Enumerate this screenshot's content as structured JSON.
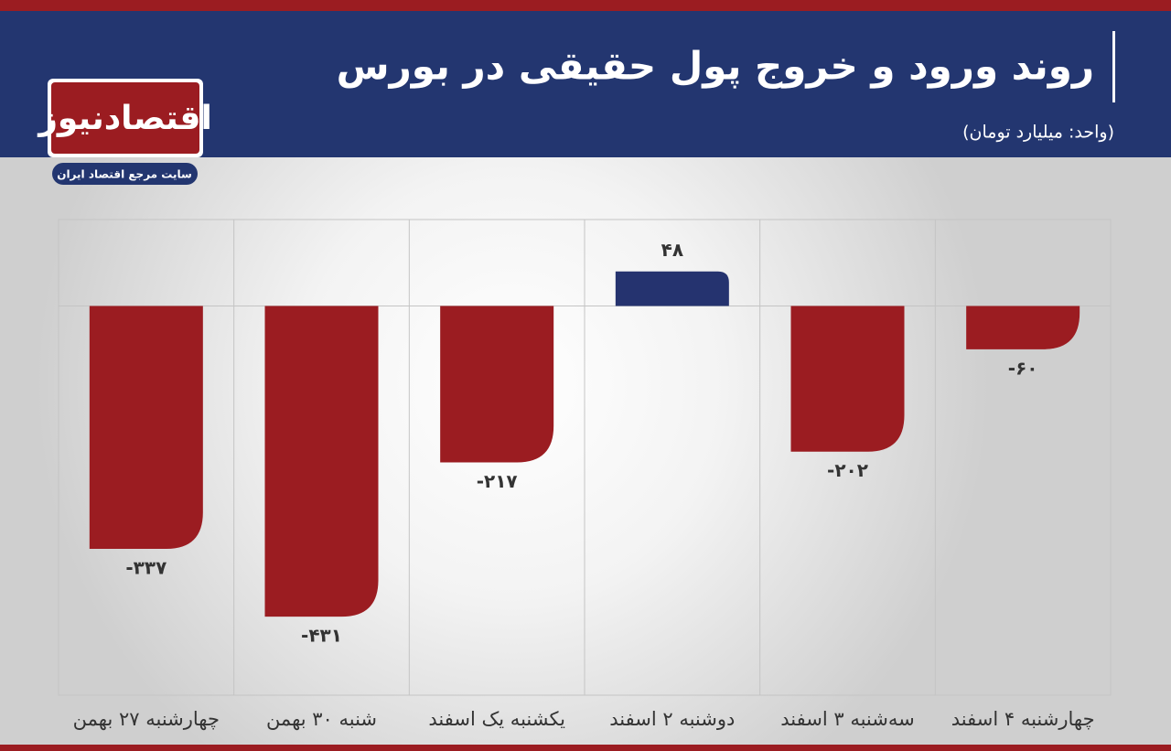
{
  "chart_data": {
    "type": "bar",
    "title": "روند ورود و خروج پول حقیقی در بورس",
    "subtitle": "(واحد: میلیارد تومان)",
    "categories": [
      "چهارشنبه ۲۷ بهمن",
      "شنبه ۳۰ بهمن",
      "یکشنبه یک اسفند",
      "دوشنبه ۲ اسفند",
      "سه‌شنبه ۳ اسفند",
      "چهارشنبه ۴ اسفند"
    ],
    "values": [
      -337,
      -431,
      -217,
      48,
      -202,
      -60
    ],
    "value_labels": [
      "-۳۳۷",
      "-۴۳۱",
      "-۲۱۷",
      "۴۸",
      "-۲۰۲",
      "-۶۰"
    ],
    "colors": [
      "#9b1c21",
      "#9b1c21",
      "#9b1c21",
      "#25336f",
      "#9b1c21",
      "#9b1c21"
    ],
    "ylim": [
      -540,
      120
    ]
  },
  "logo": {
    "name": "اقتصادنیوز",
    "tagline": "سایت مرجع اقتصاد ایران"
  }
}
